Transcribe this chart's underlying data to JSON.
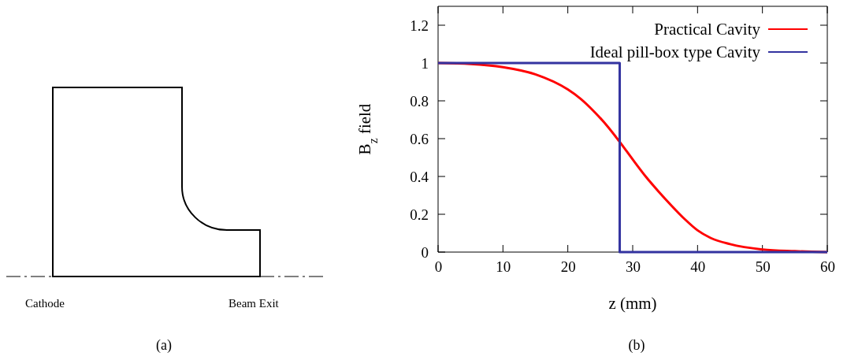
{
  "chart_data": [
    {
      "type": "other",
      "annotations": [
        "Cathode",
        "Beam Exit",
        "(a)"
      ]
    },
    {
      "type": "line",
      "xlabel": "z (mm)",
      "ylabel": "B$_{z}$ field",
      "annotations": [
        "(b)"
      ],
      "xlim": [
        0,
        60
      ],
      "ylim": [
        0,
        1.3
      ],
      "xticks": [
        0,
        10,
        20,
        30,
        40,
        50,
        60
      ],
      "yticks": [
        0,
        0.2,
        0.4,
        0.6,
        0.8,
        1,
        1.2
      ],
      "grid": false,
      "legend": "top right",
      "series": [
        {
          "name": "Practical Cavity",
          "color": "#ff0000",
          "x": [
            0,
            5,
            10,
            15,
            20,
            22,
            24,
            26,
            28,
            30,
            32,
            34,
            36,
            38,
            40,
            42,
            45,
            50,
            55,
            60
          ],
          "values": [
            1.0,
            0.995,
            0.978,
            0.94,
            0.86,
            0.81,
            0.745,
            0.67,
            0.583,
            0.49,
            0.4,
            0.32,
            0.245,
            0.175,
            0.115,
            0.075,
            0.042,
            0.014,
            0.005,
            0.0
          ]
        },
        {
          "name": "Ideal pill-box type Cavity",
          "color": "#3333a0",
          "x": [
            0,
            28,
            28,
            60
          ],
          "values": [
            1,
            1,
            0,
            0
          ]
        }
      ]
    }
  ]
}
